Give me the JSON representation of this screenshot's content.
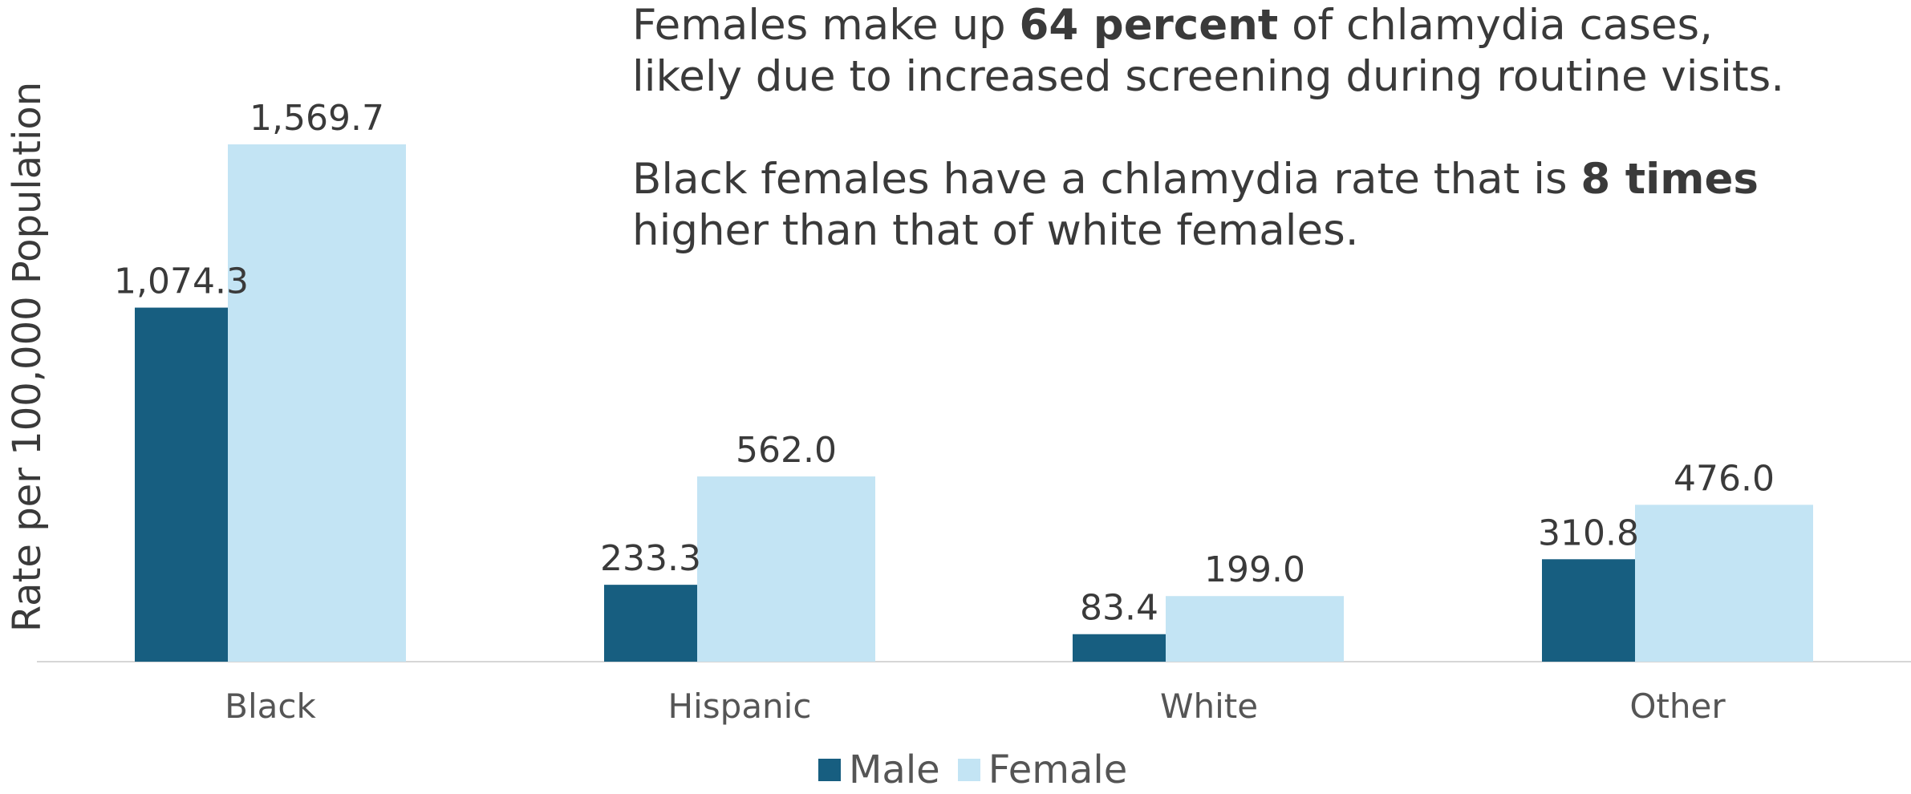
{
  "annotation": {
    "p1_pre": "Females make up ",
    "p1_bold": "64 percent",
    "p1_post": " of chlamydia cases, likely due to increased screening during routine visits.",
    "p2_pre": "Black females have a chlamydia rate that is ",
    "p2_bold": "8 times",
    "p2_post": " higher than that of white females."
  },
  "chart_data": {
    "type": "bar",
    "title": "",
    "xlabel": "",
    "ylabel": "Rate per 100,000 Population",
    "categories": [
      "Black",
      "Hispanic",
      "White",
      "Other"
    ],
    "series": [
      {
        "name": "Male",
        "values": [
          1074.3,
          233.3,
          83.4,
          310.8
        ],
        "labels": [
          "1,074.3",
          "233.3",
          "83.4",
          "310.8"
        ],
        "color": "#175e80"
      },
      {
        "name": "Female",
        "values": [
          1569.7,
          562.0,
          199.0,
          476.0
        ],
        "labels": [
          "1,569.7",
          "562.0",
          "199.0",
          "476.0"
        ],
        "color": "#c3e4f4"
      }
    ],
    "ylim": [
      0,
      1569.7
    ],
    "grid": false,
    "legend_position": "bottom"
  }
}
